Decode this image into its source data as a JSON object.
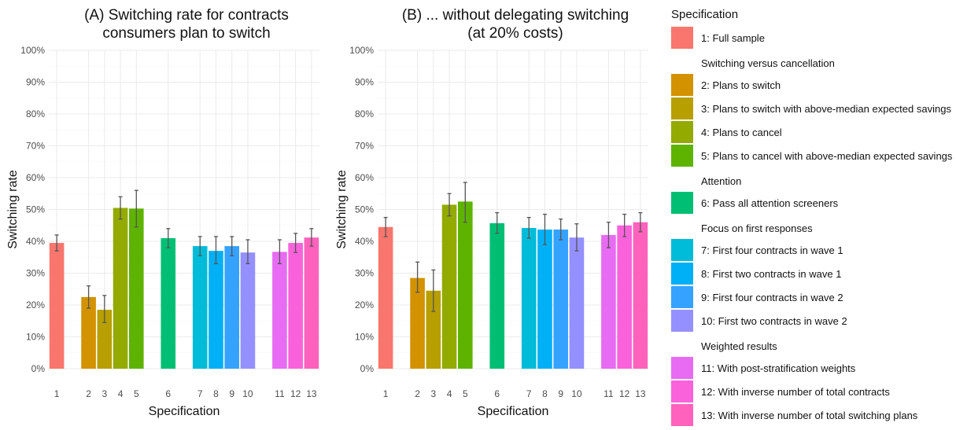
{
  "chart_data": [
    {
      "type": "bar",
      "title": "(A) Switching rate for contracts\nconsumers plan to switch",
      "xlabel": "Specification",
      "ylabel": "Switching rate",
      "ylim": [
        0,
        100
      ],
      "yticks": [
        "0%",
        "10%",
        "20%",
        "30%",
        "40%",
        "50%",
        "60%",
        "70%",
        "80%",
        "90%",
        "100%"
      ],
      "grid": true,
      "categories": [
        "1",
        "2",
        "3",
        "4",
        "5",
        "6",
        "7",
        "8",
        "9",
        "10",
        "11",
        "12",
        "13"
      ],
      "values": [
        39.5,
        22.5,
        18.5,
        50.5,
        50.3,
        41,
        38.5,
        37,
        38.5,
        36.5,
        36.7,
        39.5,
        41.2
      ],
      "err_low": [
        37,
        19,
        14.5,
        47,
        44.5,
        38,
        35.5,
        33,
        35.5,
        33,
        33,
        36.5,
        38.5
      ],
      "err_high": [
        42,
        26,
        23,
        54,
        56,
        44,
        41.5,
        41.5,
        41.5,
        40.5,
        40.5,
        42.5,
        44
      ]
    },
    {
      "type": "bar",
      "title": "(B) ... without delegating switching\n(at 20% costs)",
      "xlabel": "Specification",
      "ylabel": "Switching rate",
      "ylim": [
        0,
        100
      ],
      "yticks": [
        "0%",
        "10%",
        "20%",
        "30%",
        "40%",
        "50%",
        "60%",
        "70%",
        "80%",
        "90%",
        "100%"
      ],
      "grid": true,
      "categories": [
        "1",
        "2",
        "3",
        "4",
        "5",
        "6",
        "7",
        "8",
        "9",
        "10",
        "11",
        "12",
        "13"
      ],
      "values": [
        44.5,
        28.5,
        24.5,
        51.5,
        52.5,
        45.7,
        44.2,
        43.7,
        43.7,
        41.2,
        42,
        45,
        46
      ],
      "err_low": [
        41.5,
        24,
        18,
        48,
        46,
        42.5,
        41,
        39,
        40.5,
        37,
        38,
        41.5,
        43
      ],
      "err_high": [
        47.5,
        33.5,
        31,
        55,
        58.5,
        49,
        47.5,
        48.5,
        47,
        45.5,
        46,
        48.5,
        49
      ]
    }
  ],
  "legend": {
    "title": "Specification",
    "placement": "right",
    "groups": [
      {
        "label": "",
        "items": [
          {
            "label": "1: Full sample",
            "color": "#F8766D"
          }
        ]
      },
      {
        "label": "Switching versus cancellation",
        "items": [
          {
            "label": "2: Plans to switch",
            "color": "#D39200"
          },
          {
            "label": "3: Plans to switch with above-median expected savings",
            "color": "#B79F00"
          },
          {
            "label": "4: Plans to cancel",
            "color": "#93AA00"
          },
          {
            "label": "5: Plans to cancel with above-median expected savings",
            "color": "#5EB300"
          }
        ]
      },
      {
        "label": "Attention",
        "items": [
          {
            "label": "6: Pass all attention screeners",
            "color": "#00BF74"
          }
        ]
      },
      {
        "label": "Focus on first responses",
        "items": [
          {
            "label": "7: First four contracts in wave 1",
            "color": "#00BCD8"
          },
          {
            "label": "8: First two contracts in wave 1",
            "color": "#00B0F6"
          },
          {
            "label": "9: First four contracts in wave 2",
            "color": "#35A2FF"
          },
          {
            "label": "10: First two contracts in wave 2",
            "color": "#9590FF"
          }
        ]
      },
      {
        "label": "Weighted results",
        "items": [
          {
            "label": "11: With post-stratification weights",
            "color": "#E76BF3"
          },
          {
            "label": "12: With inverse number of total contracts",
            "color": "#FA62DB"
          },
          {
            "label": "13: With inverse number of total switching plans",
            "color": "#FF62BC"
          }
        ]
      }
    ]
  }
}
